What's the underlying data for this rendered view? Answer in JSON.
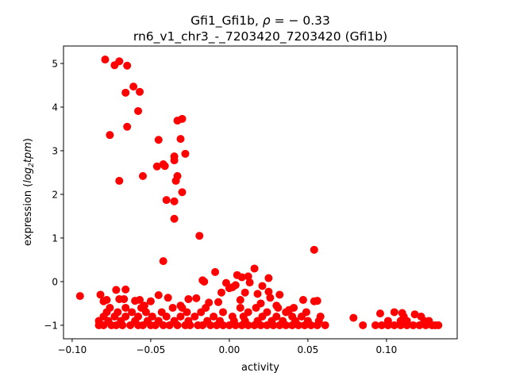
{
  "chart_data": {
    "type": "scatter",
    "title_line1_prefix": "Gfi1_Gfi1b, ",
    "title_rho": "ρ",
    "title_line1_suffix": " = − 0.33",
    "title_line2": "rn6_v1_chr3_-_7203420_7203420 (Gfi1b)",
    "xlabel": "activity",
    "ylabel_prefix": "expression (",
    "ylabel_italic": "log",
    "ylabel_sub": "2",
    "ylabel_italic2": "tpm",
    "ylabel_suffix": ")",
    "xlim": [
      -0.1055,
      0.145
    ],
    "ylim": [
      -1.31,
      5.4
    ],
    "xticks": [
      {
        "v": -0.1,
        "label": "−0.10"
      },
      {
        "v": -0.05,
        "label": "−0.05"
      },
      {
        "v": 0.0,
        "label": "0.00"
      },
      {
        "v": 0.05,
        "label": "0.05"
      },
      {
        "v": 0.1,
        "label": "0.10"
      }
    ],
    "yticks": [
      {
        "v": -1,
        "label": "−1"
      },
      {
        "v": 0,
        "label": "0"
      },
      {
        "v": 1,
        "label": "1"
      },
      {
        "v": 2,
        "label": "2"
      },
      {
        "v": 3,
        "label": "3"
      },
      {
        "v": 4,
        "label": "4"
      },
      {
        "v": 5,
        "label": "5"
      }
    ],
    "color": "#ff0000",
    "grid": false,
    "points": [
      [
        -0.079,
        5.09
      ],
      [
        -0.07,
        5.05
      ],
      [
        -0.073,
        4.96
      ],
      [
        -0.065,
        4.95
      ],
      [
        -0.061,
        4.47
      ],
      [
        -0.057,
        4.35
      ],
      [
        -0.066,
        4.33
      ],
      [
        -0.058,
        3.91
      ],
      [
        -0.065,
        3.55
      ],
      [
        -0.076,
        3.36
      ],
      [
        -0.033,
        3.69
      ],
      [
        -0.03,
        3.73
      ],
      [
        -0.031,
        3.27
      ],
      [
        -0.045,
        3.25
      ],
      [
        -0.028,
        2.93
      ],
      [
        -0.035,
        2.87
      ],
      [
        -0.035,
        2.78
      ],
      [
        -0.046,
        2.64
      ],
      [
        -0.042,
        2.69
      ],
      [
        -0.041,
        2.65
      ],
      [
        -0.033,
        2.42
      ],
      [
        -0.034,
        2.31
      ],
      [
        -0.055,
        2.42
      ],
      [
        -0.07,
        2.31
      ],
      [
        -0.03,
        2.05
      ],
      [
        -0.04,
        1.87
      ],
      [
        -0.035,
        1.84
      ],
      [
        -0.035,
        1.44
      ],
      [
        -0.019,
        1.05
      ],
      [
        -0.042,
        0.47
      ],
      [
        0.054,
        0.73
      ],
      [
        -0.083,
        -1
      ],
      [
        -0.08,
        -1
      ],
      [
        -0.075,
        -1
      ],
      [
        -0.072,
        -1
      ],
      [
        -0.068,
        -1
      ],
      [
        -0.063,
        -1
      ],
      [
        -0.058,
        -1
      ],
      [
        -0.055,
        -1
      ],
      [
        -0.05,
        -1
      ],
      [
        -0.047,
        -1
      ],
      [
        -0.042,
        -1
      ],
      [
        -0.038,
        -1
      ],
      [
        -0.033,
        -1
      ],
      [
        -0.028,
        -1
      ],
      [
        -0.025,
        -1
      ],
      [
        -0.02,
        -1
      ],
      [
        -0.017,
        -1
      ],
      [
        -0.012,
        -1
      ],
      [
        -0.008,
        -1
      ],
      [
        -0.004,
        -1
      ],
      [
        0.0,
        -1
      ],
      [
        0.004,
        -1
      ],
      [
        0.008,
        -1
      ],
      [
        0.012,
        -1
      ],
      [
        0.016,
        -1
      ],
      [
        0.02,
        -1
      ],
      [
        0.024,
        -1
      ],
      [
        0.028,
        -1
      ],
      [
        0.032,
        -1
      ],
      [
        0.036,
        -1
      ],
      [
        0.04,
        -1
      ],
      [
        0.044,
        -1
      ],
      [
        0.048,
        -1
      ],
      [
        0.052,
        -1
      ],
      [
        0.056,
        -1
      ],
      [
        0.061,
        -1
      ],
      [
        0.085,
        -1
      ],
      [
        0.093,
        -1
      ],
      [
        0.097,
        -1
      ],
      [
        0.101,
        -1
      ],
      [
        0.105,
        -1
      ],
      [
        0.109,
        -1
      ],
      [
        0.113,
        -1
      ],
      [
        0.117,
        -1
      ],
      [
        0.121,
        -1
      ],
      [
        0.125,
        -1
      ],
      [
        0.129,
        -1
      ],
      [
        0.131,
        -1
      ],
      [
        0.133,
        -1
      ],
      [
        -0.083,
        -0.9
      ],
      [
        -0.077,
        -0.9
      ],
      [
        -0.069,
        -0.9
      ],
      [
        -0.06,
        -0.9
      ],
      [
        -0.052,
        -0.9
      ],
      [
        -0.045,
        -0.9
      ],
      [
        -0.035,
        -0.9
      ],
      [
        -0.026,
        -0.9
      ],
      [
        -0.014,
        -0.9
      ],
      [
        -0.006,
        -0.9
      ],
      [
        0.003,
        -0.9
      ],
      [
        0.01,
        -0.9
      ],
      [
        0.018,
        -0.9
      ],
      [
        0.027,
        -0.9
      ],
      [
        0.034,
        -0.9
      ],
      [
        0.042,
        -0.9
      ],
      [
        0.05,
        -0.9
      ],
      [
        0.057,
        -0.9
      ],
      [
        0.101,
        -0.9
      ],
      [
        0.109,
        -0.9
      ],
      [
        0.113,
        -0.9
      ],
      [
        0.124,
        -0.9
      ],
      [
        0.127,
        -0.9
      ],
      [
        -0.08,
        -0.8
      ],
      [
        -0.073,
        -0.8
      ],
      [
        -0.066,
        -0.8
      ],
      [
        -0.058,
        -0.8
      ],
      [
        -0.049,
        -0.8
      ],
      [
        -0.04,
        -0.8
      ],
      [
        -0.031,
        -0.8
      ],
      [
        -0.022,
        -0.8
      ],
      [
        -0.01,
        -0.8
      ],
      [
        0.002,
        -0.8
      ],
      [
        0.009,
        -0.8
      ],
      [
        0.021,
        -0.8
      ],
      [
        0.03,
        -0.8
      ],
      [
        0.04,
        -0.8
      ],
      [
        0.046,
        -0.8
      ],
      [
        0.058,
        -0.8
      ],
      [
        0.079,
        -0.83
      ],
      [
        0.111,
        -0.8
      ],
      [
        0.122,
        -0.8
      ],
      [
        -0.078,
        -0.7
      ],
      [
        -0.071,
        -0.7
      ],
      [
        -0.062,
        -0.7
      ],
      [
        -0.053,
        -0.7
      ],
      [
        -0.043,
        -0.7
      ],
      [
        -0.027,
        -0.7
      ],
      [
        -0.018,
        -0.7
      ],
      [
        -0.004,
        -0.7
      ],
      [
        0.012,
        -0.7
      ],
      [
        0.024,
        -0.7
      ],
      [
        0.036,
        -0.7
      ],
      [
        0.049,
        -0.7
      ],
      [
        0.096,
        -0.73
      ],
      [
        0.105,
        -0.7
      ],
      [
        0.11,
        -0.72
      ],
      [
        0.118,
        -0.75
      ],
      [
        -0.076,
        -0.6
      ],
      [
        -0.066,
        -0.6
      ],
      [
        -0.056,
        -0.6
      ],
      [
        -0.036,
        -0.6
      ],
      [
        -0.03,
        -0.6
      ],
      [
        -0.015,
        -0.6
      ],
      [
        0.007,
        -0.6
      ],
      [
        0.017,
        -0.6
      ],
      [
        0.031,
        -0.6
      ],
      [
        0.041,
        -0.6
      ],
      [
        -0.095,
        -0.33
      ],
      [
        -0.082,
        -0.3
      ],
      [
        -0.072,
        -0.19
      ],
      [
        -0.066,
        -0.18
      ],
      [
        -0.06,
        -0.44
      ],
      [
        -0.057,
        -0.42
      ],
      [
        -0.05,
        -0.45
      ],
      [
        -0.045,
        -0.31
      ],
      [
        -0.039,
        -0.37
      ],
      [
        -0.021,
        -0.38
      ],
      [
        -0.016,
        0.0
      ],
      [
        -0.017,
        0.03
      ],
      [
        -0.013,
        -0.48
      ],
      [
        -0.007,
        -0.47
      ],
      [
        -0.002,
        -0.03
      ],
      [
        0.0,
        -0.15
      ],
      [
        0.002,
        -0.13
      ],
      [
        0.004,
        -0.08
      ],
      [
        0.007,
        -0.42
      ],
      [
        0.005,
        0.15
      ],
      [
        0.008,
        0.1
      ],
      [
        0.012,
        0.12
      ],
      [
        0.013,
        -0.02
      ],
      [
        0.016,
        0.3
      ],
      [
        0.018,
        -0.28
      ],
      [
        0.02,
        -0.5
      ],
      [
        0.025,
        -0.23
      ],
      [
        0.025,
        0.08
      ],
      [
        0.026,
        -0.37
      ],
      [
        0.03,
        -0.55
      ],
      [
        0.032,
        -0.3
      ],
      [
        0.038,
        -0.65
      ],
      [
        0.047,
        -0.42
      ],
      [
        0.054,
        -0.45
      ],
      [
        0.056,
        -0.44
      ],
      [
        -0.005,
        -0.25
      ],
      [
        -0.009,
        0.22
      ],
      [
        -0.078,
        -0.42
      ],
      [
        -0.08,
        -0.45
      ],
      [
        -0.07,
        -0.4
      ],
      [
        -0.067,
        -0.4
      ],
      [
        -0.054,
        -0.55
      ],
      [
        -0.031,
        -0.55
      ],
      [
        -0.026,
        -0.4
      ],
      [
        0.01,
        -0.25
      ],
      [
        0.021,
        -0.1
      ]
    ]
  }
}
